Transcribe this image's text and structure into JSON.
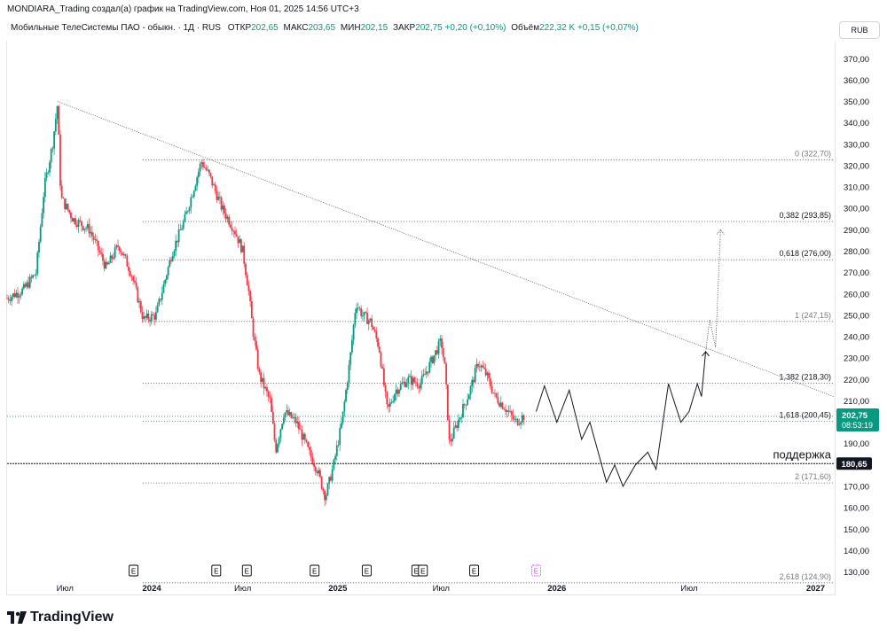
{
  "header": {
    "attribution": "MONDIARA_Trading создал(а) график на TradingView.com, Ноя 01, 2025 14:56 UTC+3"
  },
  "legend": {
    "instrument": "Мобильные ТелеСистемы ПАО - обыкн. · 1Д · RUS",
    "open_label": "ОТКР",
    "open": "202,65",
    "high_label": "МАКС",
    "high": "203,65",
    "low_label": "МИН",
    "low": "202,15",
    "close_label": "ЗАКР",
    "close": "202,75",
    "change": "+0,20 (+0,10%)",
    "volume_label": "Объём",
    "volume": "222,32 K",
    "volume_change": "+0,15 (+0,07%)"
  },
  "currency": "RUB",
  "brand": "TradingView",
  "colors": {
    "up": "#089981",
    "down": "#f23645",
    "price_label_bg": "#089981",
    "support_bg": "#131722",
    "earnings": "#000000",
    "earnings_future": "#e040fb"
  },
  "chart_data": {
    "type": "candlestick",
    "y_range": [
      124,
      378
    ],
    "y_ticks": [
      {
        "v": 370,
        "label": "370,00"
      },
      {
        "v": 360,
        "label": "360,00"
      },
      {
        "v": 350,
        "label": "350,00"
      },
      {
        "v": 340,
        "label": "340,00"
      },
      {
        "v": 330,
        "label": "330,00"
      },
      {
        "v": 320,
        "label": "320,00"
      },
      {
        "v": 310,
        "label": "310,00"
      },
      {
        "v": 300,
        "label": "300,00"
      },
      {
        "v": 290,
        "label": "290,00"
      },
      {
        "v": 280,
        "label": "280,00"
      },
      {
        "v": 270,
        "label": "270,00"
      },
      {
        "v": 260,
        "label": "260,00"
      },
      {
        "v": 250,
        "label": "250,00"
      },
      {
        "v": 240,
        "label": "240,00"
      },
      {
        "v": 230,
        "label": "230,00"
      },
      {
        "v": 220,
        "label": "220,00"
      },
      {
        "v": 210,
        "label": "210,00"
      },
      {
        "v": 190,
        "label": "190,00"
      },
      {
        "v": 170,
        "label": "170,00"
      },
      {
        "v": 160,
        "label": "160,00"
      },
      {
        "v": 150,
        "label": "150,00"
      },
      {
        "v": 140,
        "label": "140,00"
      },
      {
        "v": 130,
        "label": "130,00"
      }
    ],
    "x_ticks": [
      {
        "t": 0.07,
        "label": "Июл",
        "bold": false
      },
      {
        "t": 0.175,
        "label": "2024",
        "bold": true
      },
      {
        "t": 0.285,
        "label": "Июл",
        "bold": false
      },
      {
        "t": 0.4,
        "label": "2025",
        "bold": true
      },
      {
        "t": 0.525,
        "label": "Июл",
        "bold": false
      },
      {
        "t": 0.665,
        "label": "2026",
        "bold": true
      },
      {
        "t": 0.825,
        "label": "Июл",
        "bold": false
      },
      {
        "t": 0.978,
        "label": "2027",
        "bold": true
      }
    ],
    "price_path": [
      [
        0.0,
        258
      ],
      [
        0.02,
        262
      ],
      [
        0.035,
        270
      ],
      [
        0.045,
        310
      ],
      [
        0.055,
        330
      ],
      [
        0.061,
        349
      ],
      [
        0.065,
        305
      ],
      [
        0.08,
        295
      ],
      [
        0.1,
        290
      ],
      [
        0.12,
        272
      ],
      [
        0.135,
        283
      ],
      [
        0.15,
        270
      ],
      [
        0.165,
        248
      ],
      [
        0.18,
        250
      ],
      [
        0.2,
        280
      ],
      [
        0.215,
        295
      ],
      [
        0.235,
        322
      ],
      [
        0.245,
        315
      ],
      [
        0.26,
        300
      ],
      [
        0.275,
        290
      ],
      [
        0.285,
        280
      ],
      [
        0.292,
        262
      ],
      [
        0.297,
        244
      ],
      [
        0.305,
        222
      ],
      [
        0.318,
        210
      ],
      [
        0.325,
        187
      ],
      [
        0.335,
        205
      ],
      [
        0.35,
        200
      ],
      [
        0.365,
        186
      ],
      [
        0.375,
        178
      ],
      [
        0.385,
        165
      ],
      [
        0.395,
        180
      ],
      [
        0.405,
        200
      ],
      [
        0.415,
        230
      ],
      [
        0.422,
        256
      ],
      [
        0.43,
        250
      ],
      [
        0.44,
        247
      ],
      [
        0.45,
        235
      ],
      [
        0.46,
        205
      ],
      [
        0.47,
        215
      ],
      [
        0.485,
        220
      ],
      [
        0.5,
        218
      ],
      [
        0.515,
        230
      ],
      [
        0.525,
        238
      ],
      [
        0.53,
        224
      ],
      [
        0.535,
        190
      ],
      [
        0.545,
        200
      ],
      [
        0.56,
        215
      ],
      [
        0.57,
        228
      ],
      [
        0.58,
        222
      ],
      [
        0.59,
        212
      ],
      [
        0.6,
        208
      ],
      [
        0.615,
        200
      ],
      [
        0.625,
        203
      ]
    ],
    "projection": [
      [
        0.64,
        205
      ],
      [
        0.65,
        217
      ],
      [
        0.665,
        200
      ],
      [
        0.68,
        215
      ],
      [
        0.695,
        192
      ],
      [
        0.705,
        200
      ],
      [
        0.725,
        172
      ],
      [
        0.735,
        180
      ],
      [
        0.745,
        170
      ],
      [
        0.76,
        180
      ],
      [
        0.775,
        186
      ],
      [
        0.785,
        178
      ],
      [
        0.8,
        218
      ],
      [
        0.815,
        200
      ],
      [
        0.825,
        205
      ],
      [
        0.835,
        218
      ],
      [
        0.84,
        212
      ],
      [
        0.845,
        233
      ]
    ],
    "projection_dotted": [
      [
        0.845,
        233
      ],
      [
        0.85,
        248
      ],
      [
        0.857,
        235
      ],
      [
        0.863,
        290
      ]
    ],
    "trendline": [
      [
        0.061,
        350
      ],
      [
        1.0,
        212
      ]
    ],
    "fib_levels": [
      {
        "ratio": "0",
        "price": 322.7,
        "label": "0 (322,70)"
      },
      {
        "ratio": "0,382",
        "price": 293.85,
        "label": "0,382 (293,85)"
      },
      {
        "ratio": "0,618",
        "price": 276.0,
        "label": "0,618 (276,00)"
      },
      {
        "ratio": "1",
        "price": 247.15,
        "label": "1 (247,15)"
      },
      {
        "ratio": "1,382",
        "price": 218.3,
        "label": "1,382 (218,30)"
      },
      {
        "ratio": "1,618",
        "price": 200.45,
        "label": "1,618 (200,45)"
      },
      {
        "ratio": "2",
        "price": 171.6,
        "label": "2 (171,60)"
      },
      {
        "ratio": "2,618",
        "price": 124.9,
        "label": "2,618 (124,90)"
      }
    ],
    "support": {
      "price": 180.65,
      "label": "поддержка",
      "price_label": "180,65"
    },
    "current_price": {
      "price": 202.75,
      "label": "202,75",
      "countdown": "08:53:19"
    },
    "earnings": [
      {
        "t": 0.153,
        "future": false
      },
      {
        "t": 0.253,
        "future": false
      },
      {
        "t": 0.29,
        "future": false
      },
      {
        "t": 0.372,
        "future": false
      },
      {
        "t": 0.435,
        "future": false
      },
      {
        "t": 0.495,
        "future": false
      },
      {
        "t": 0.503,
        "future": false
      },
      {
        "t": 0.565,
        "future": false
      },
      {
        "t": 0.64,
        "future": true
      }
    ],
    "earnings_marker": "E"
  }
}
